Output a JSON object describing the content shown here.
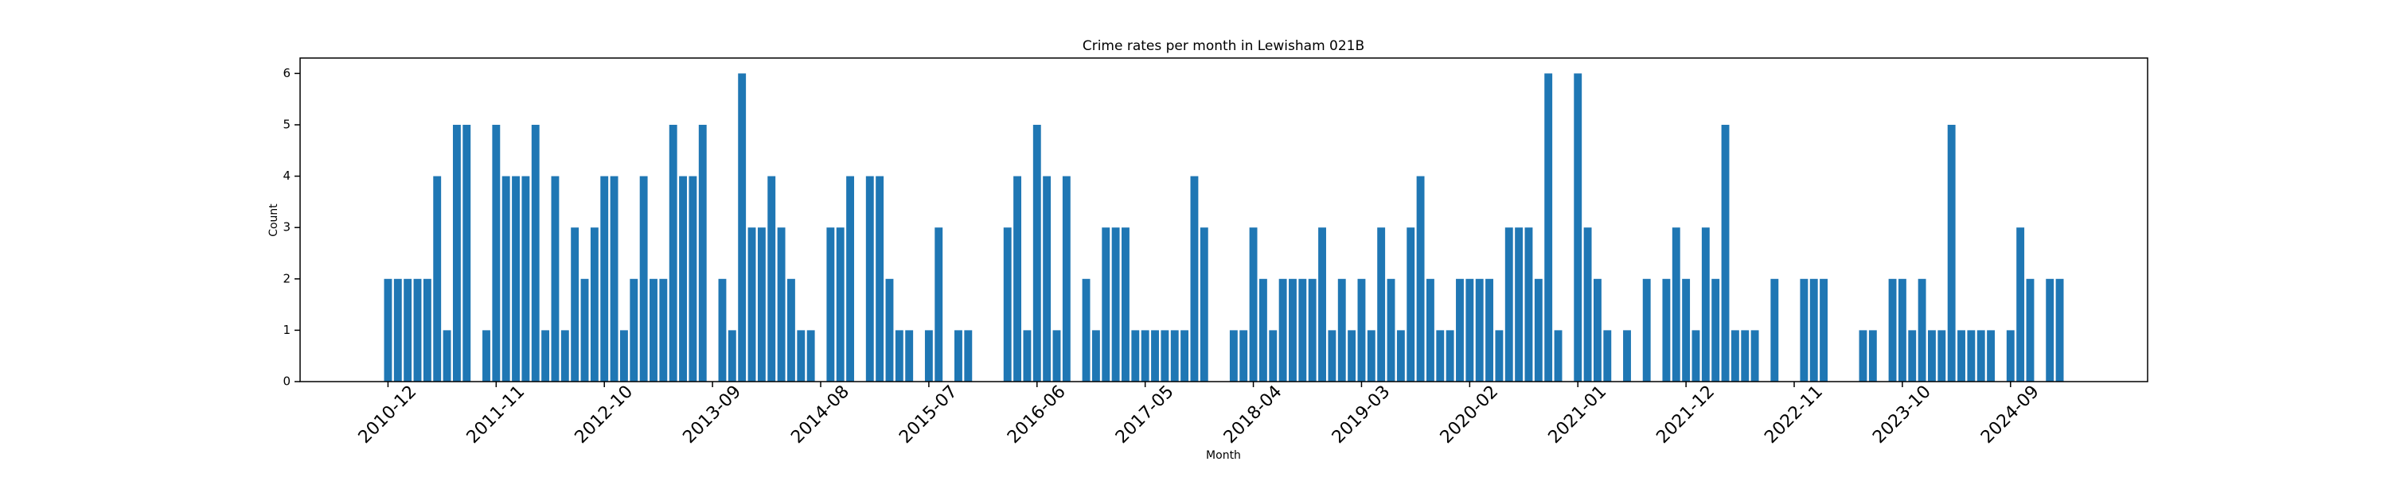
{
  "chart_data": {
    "type": "bar",
    "title": "Crime rates per month in Lewisham 021B",
    "xlabel": "Month",
    "ylabel": "Count",
    "color": "#1f77b4",
    "categories": [
      "2010-12",
      null,
      null,
      null,
      null,
      null,
      null,
      null,
      null,
      null,
      null,
      "2011-11",
      null,
      null,
      null,
      null,
      null,
      null,
      null,
      null,
      null,
      null,
      "2012-10",
      null,
      null,
      null,
      null,
      null,
      null,
      null,
      null,
      null,
      null,
      "2013-09",
      null,
      null,
      null,
      null,
      null,
      null,
      null,
      null,
      null,
      null,
      "2014-08",
      null,
      null,
      null,
      null,
      null,
      null,
      null,
      null,
      null,
      null,
      "2015-07",
      null,
      null,
      null,
      null,
      null,
      null,
      null,
      null,
      null,
      null,
      "2016-06",
      null,
      null,
      null,
      null,
      null,
      null,
      null,
      null,
      null,
      null,
      "2017-05",
      null,
      null,
      null,
      null,
      null,
      null,
      null,
      null,
      null,
      null,
      "2018-04",
      null,
      null,
      null,
      null,
      null,
      null,
      null,
      null,
      null,
      null,
      "2019-03",
      null,
      null,
      null,
      null,
      null,
      null,
      null,
      null,
      null,
      null,
      "2020-02",
      null,
      null,
      null,
      null,
      null,
      null,
      null,
      null,
      null,
      null,
      "2021-01",
      null,
      null,
      null,
      null,
      null,
      null,
      null,
      null,
      null,
      null,
      "2021-12",
      null,
      null,
      null,
      null,
      null,
      null,
      null,
      null,
      null,
      null,
      "2022-11",
      null,
      null,
      null,
      null,
      null,
      null,
      null,
      null,
      null,
      null,
      "2023-10",
      null,
      null,
      null,
      null,
      null,
      null,
      null,
      null,
      null,
      null,
      "2024-09",
      null,
      null,
      null,
      null,
      null
    ],
    "values": [
      2,
      2,
      2,
      2,
      2,
      4,
      1,
      5,
      5,
      0,
      1,
      5,
      4,
      4,
      4,
      5,
      1,
      4,
      1,
      3,
      2,
      3,
      4,
      4,
      1,
      2,
      4,
      2,
      2,
      5,
      4,
      4,
      5,
      0,
      2,
      1,
      6,
      3,
      3,
      4,
      3,
      2,
      1,
      1,
      0,
      3,
      3,
      4,
      0,
      4,
      4,
      2,
      1,
      1,
      0,
      1,
      3,
      0,
      1,
      1,
      0,
      0,
      0,
      3,
      4,
      1,
      5,
      4,
      1,
      4,
      0,
      2,
      1,
      3,
      3,
      3,
      1,
      1,
      1,
      1,
      1,
      1,
      4,
      3,
      0,
      0,
      1,
      1,
      3,
      2,
      1,
      2,
      2,
      2,
      2,
      3,
      1,
      2,
      1,
      2,
      1,
      3,
      2,
      1,
      3,
      4,
      2,
      1,
      1,
      2,
      2,
      2,
      2,
      1,
      3,
      3,
      3,
      2,
      6,
      1,
      0,
      6,
      3,
      2,
      1,
      0,
      1,
      0,
      2,
      0,
      2,
      3,
      2,
      1,
      3,
      2,
      5,
      1,
      1,
      1,
      0,
      2,
      0,
      0,
      2,
      2,
      2,
      0,
      0,
      0,
      1,
      1,
      0,
      2,
      2,
      1,
      2,
      1,
      1,
      5,
      1,
      1,
      1,
      1,
      0,
      1,
      3,
      2,
      0,
      2,
      2
    ],
    "ylim": [
      0,
      6.3
    ],
    "yticks": [
      0,
      1,
      2,
      3,
      4,
      5,
      6
    ]
  }
}
